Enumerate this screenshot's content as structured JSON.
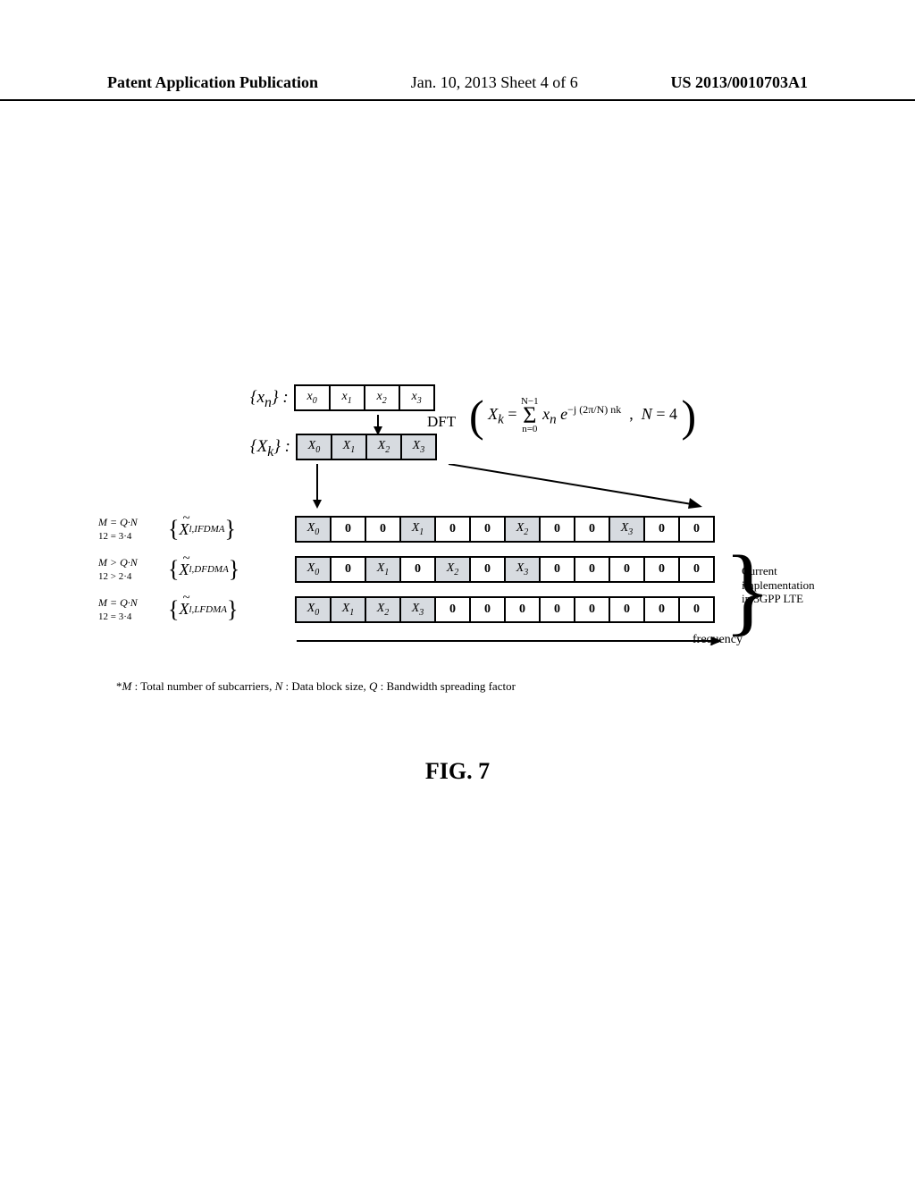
{
  "header": {
    "left": "Patent Application Publication",
    "mid": "Jan. 10, 2013  Sheet 4 of 6",
    "right": "US 2013/0010703A1"
  },
  "toprow": {
    "xn_set": "{xₙ} :",
    "xk_set": "{Xₖ} :",
    "cells_top": [
      "x₀",
      "x₁",
      "x₂",
      "x₃"
    ],
    "cells_bottom": [
      "X₀",
      "X₁",
      "X₂",
      "X₃"
    ],
    "dft_label": "DFT",
    "formula": "( Xₖ = Σₙ₌₀ᴺ⁻¹ xₙ e−j(2π/N)nk ,  N = 4 )"
  },
  "rows": [
    {
      "cond_line1": "M = Q·N",
      "cond_line2": "12 = 3·4",
      "set_label": "X̃ₗ,IFDMA",
      "cells": [
        {
          "t": "X₀",
          "s": true
        },
        {
          "t": "0"
        },
        {
          "t": "0"
        },
        {
          "t": "X₁",
          "s": true
        },
        {
          "t": "0"
        },
        {
          "t": "0"
        },
        {
          "t": "X₂",
          "s": true
        },
        {
          "t": "0"
        },
        {
          "t": "0"
        },
        {
          "t": "X₃",
          "s": true
        },
        {
          "t": "0"
        },
        {
          "t": "0"
        }
      ]
    },
    {
      "cond_line1": "M > Q·N",
      "cond_line2": "12 > 2·4",
      "set_label": "X̃ₗ,DFDMA",
      "cells": [
        {
          "t": "X₀",
          "s": true
        },
        {
          "t": "0"
        },
        {
          "t": "X₁",
          "s": true
        },
        {
          "t": "0"
        },
        {
          "t": "X₂",
          "s": true
        },
        {
          "t": "0"
        },
        {
          "t": "X₃",
          "s": true
        },
        {
          "t": "0"
        },
        {
          "t": "0"
        },
        {
          "t": "0"
        },
        {
          "t": "0"
        },
        {
          "t": "0"
        }
      ]
    },
    {
      "cond_line1": "M = Q·N",
      "cond_line2": "12 = 3·4",
      "set_label": "X̃ₗ,LFDMA",
      "cells": [
        {
          "t": "X₀",
          "s": true
        },
        {
          "t": "X₁",
          "s": true
        },
        {
          "t": "X₂",
          "s": true
        },
        {
          "t": "X₃",
          "s": true
        },
        {
          "t": "0"
        },
        {
          "t": "0"
        },
        {
          "t": "0"
        },
        {
          "t": "0"
        },
        {
          "t": "0"
        },
        {
          "t": "0"
        },
        {
          "t": "0"
        },
        {
          "t": "0"
        }
      ]
    }
  ],
  "annot": "Current\nimplementation\nin 3GPP LTE",
  "freq_label": "frequency",
  "footnote": "*M : Total number of subcarriers, N : Data block size, Q : Bandwidth spreading factor",
  "figtitle": "FIG. 7",
  "colors": {
    "shaded_bg": "#d7dbe0",
    "border": "#000000",
    "bg": "#ffffff"
  }
}
